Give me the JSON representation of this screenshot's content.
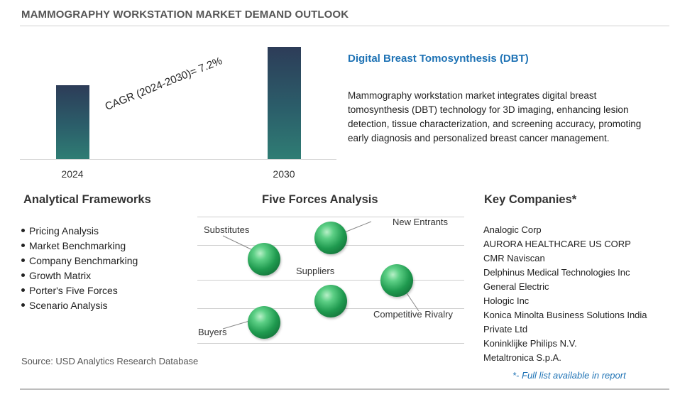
{
  "header": {
    "title": "MAMMOGRAPHY WORKSTATION MARKET DEMAND OUTLOOK"
  },
  "chart_data": {
    "type": "bar",
    "categories": [
      "2024",
      "2030"
    ],
    "values": [
      1.0,
      1.52
    ],
    "annotation": "CAGR (2024-2030)=  7.2%"
  },
  "highlight": {
    "title": "Digital Breast Tomosynthesis (DBT)",
    "description": "Mammography workstation market integrates digital breast tomosynthesis (DBT) technology for 3D imaging, enhancing lesion detection, tissue characterization, and screening accuracy, promoting early diagnosis and personalized breast cancer management."
  },
  "frameworks": {
    "title": "Analytical Frameworks",
    "items": [
      "Pricing Analysis",
      "Market Benchmarking",
      "Company Benchmarking",
      "Growth Matrix",
      "Porter's Five Forces",
      "Scenario Analysis"
    ]
  },
  "five_forces": {
    "title": "Five Forces Analysis",
    "labels": {
      "substitutes": "Substitutes",
      "new_entrants": "New Entrants",
      "suppliers": "Suppliers",
      "competitive_rivalry": "Competitive Rivalry",
      "buyers": "Buyers"
    }
  },
  "companies": {
    "title": "Key Companies*",
    "items": [
      "Analogic Corp",
      "AURORA HEALTHCARE US CORP",
      "CMR Naviscan",
      "Delphinus Medical Technologies Inc",
      "General Electric",
      "Hologic Inc",
      "Konica Minolta Business Solutions India",
      "Private Ltd",
      "Koninklijke Philips N.V.",
      "Metaltronica S.p.A."
    ],
    "note": "*- Full list available in report"
  },
  "footer": {
    "source": "Source: USD Analytics Research Database"
  },
  "colors": {
    "accent": "#1f73b5",
    "bar_top": "#2d3c58",
    "bar_bottom": "#2f7d74",
    "ball": "#1f9a4f"
  }
}
